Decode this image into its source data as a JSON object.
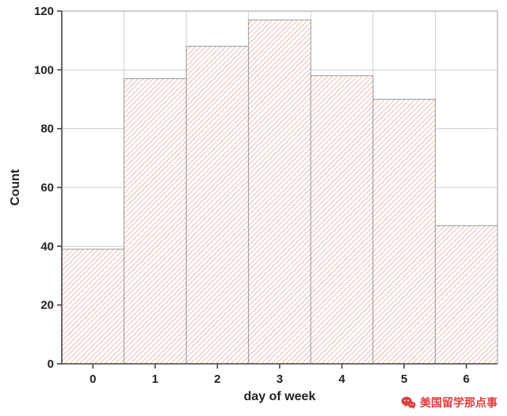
{
  "chart_data": {
    "type": "bar",
    "title": "",
    "xlabel": "day of week",
    "ylabel": "Count",
    "categories": [
      0,
      1,
      2,
      3,
      4,
      5,
      6
    ],
    "values": [
      39,
      97,
      108,
      117,
      98,
      90,
      47
    ],
    "xlim": [
      -0.5,
      6.5
    ],
    "ylim": [
      0,
      120
    ],
    "yticks": [
      0,
      20,
      40,
      60,
      80,
      100,
      120
    ],
    "grid": true,
    "legend": "none",
    "bar_style": "histogram, contiguous bars, diagonal hatch fill",
    "colors": {
      "bar_hatch": "#e39482",
      "bar_edge": "#9b9b9b",
      "grid": "#cfcfcf",
      "axis": "#444444",
      "text": "#222222",
      "background": "#ffffff"
    }
  },
  "watermark": {
    "text": "美国留学那点事",
    "color": "#e13c3c",
    "icon": "wechat-icon"
  }
}
